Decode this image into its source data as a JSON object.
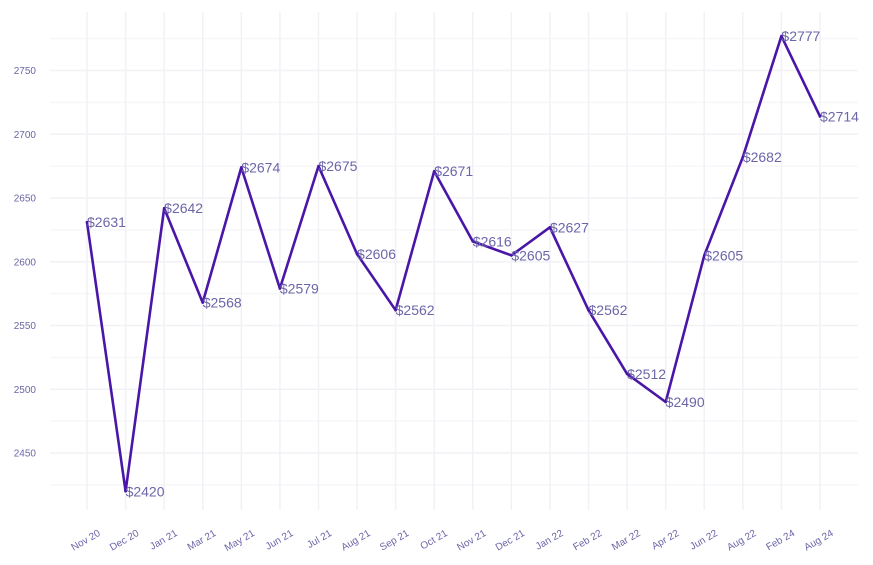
{
  "chart_data": {
    "type": "line",
    "title": "",
    "xlabel": "",
    "ylabel": "",
    "categories": [
      "Nov 20",
      "Dec 20",
      "Jan 21",
      "Mar 21",
      "May 21",
      "Jun 21",
      "Jul 21",
      "Aug 21",
      "Sep 21",
      "Oct 21",
      "Nov 21",
      "Dec 21",
      "Jan 22",
      "Feb 22",
      "Mar 22",
      "Apr 22",
      "Jun 22",
      "Aug 22",
      "Feb 24",
      "Aug 24"
    ],
    "series": [
      {
        "values": [
          2631,
          2420,
          2642,
          2568,
          2674,
          2579,
          2675,
          2606,
          2562,
          2671,
          2616,
          2605,
          2627,
          2562,
          2512,
          2490,
          2605,
          2682,
          2777,
          2714
        ],
        "labels": [
          "$2631",
          "$2420",
          "$2642",
          "$2568",
          "$2674",
          "$2579",
          "$2675",
          "$2606",
          "$2562",
          "$2671",
          "$2616",
          "$2605",
          "$2627",
          "$2562",
          "$2512",
          "$2490",
          "$2605",
          "$2682",
          "$2777",
          "$2714"
        ]
      }
    ],
    "y_ticks": [
      2450,
      2500,
      2550,
      2600,
      2650,
      2700,
      2750
    ],
    "y_tick_labels": [
      "2450",
      "2500",
      "2550",
      "2600",
      "2650",
      "2700",
      "2750"
    ],
    "ylim": [
      2405,
      2792
    ],
    "grid": true,
    "legend": "none",
    "colors": {
      "line": "#4a16a8",
      "text": "#6b66a8",
      "grid": "#f2f2f6"
    }
  }
}
